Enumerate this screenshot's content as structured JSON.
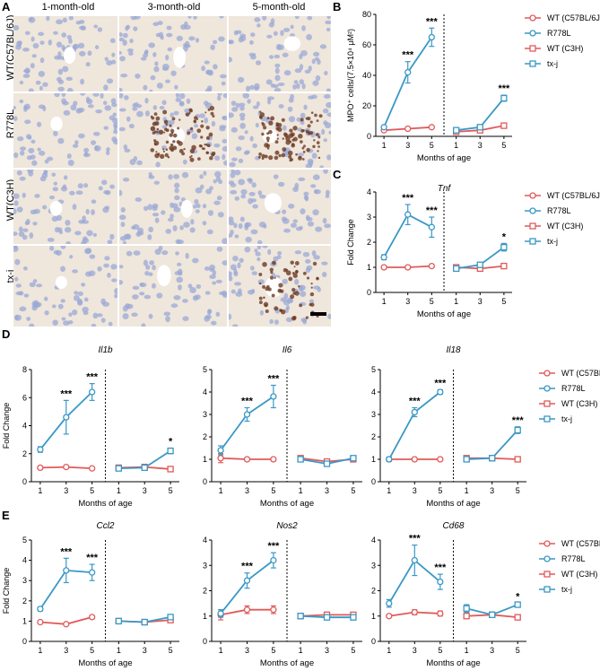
{
  "panel_letters": {
    "A": "A",
    "B": "B",
    "C": "C",
    "D": "D",
    "E": "E"
  },
  "histology": {
    "columns": [
      "1-month-old",
      "3-month-old",
      "5-month-old"
    ],
    "rows": [
      "WT(C57BL/6J)",
      "R778L",
      "WT(C3H)",
      "tx-j"
    ],
    "stain_level": [
      [
        0,
        0,
        0
      ],
      [
        0,
        3,
        3
      ],
      [
        0,
        0,
        0
      ],
      [
        0,
        0,
        2
      ]
    ],
    "colors": {
      "tissue": "#efe6dc",
      "nuclei": "#9aa8d6",
      "vessel": "#ffffff",
      "stain": "#6b3a22"
    }
  },
  "legend": [
    {
      "label": "WT (C57BL/6J)",
      "color": "#e05a5a",
      "marker": "circle"
    },
    {
      "label": "R778L",
      "color": "#3a98c6",
      "marker": "circle"
    },
    {
      "label": "WT (C3H)",
      "color": "#e05a5a",
      "marker": "square"
    },
    {
      "label": "tx-j",
      "color": "#3a98c6",
      "marker": "square"
    }
  ],
  "chart_data": [
    {
      "panel": "B",
      "type": "line",
      "title": "",
      "ylabel": "MPO⁺ cells/(7.5×10⁴ μM²)",
      "xlabel": "Months of age",
      "x": [
        1,
        3,
        5
      ],
      "ylim": [
        0,
        80
      ],
      "yticks": [
        0,
        20,
        40,
        60,
        80
      ],
      "series": [
        {
          "name": "WT (C57BL/6J)",
          "group": "left",
          "values": [
            4,
            5,
            6
          ],
          "err": [
            0.5,
            0.5,
            0.5
          ]
        },
        {
          "name": "R778L",
          "group": "left",
          "values": [
            6,
            42,
            65
          ],
          "err": [
            1,
            7,
            6
          ]
        },
        {
          "name": "WT (C3H)",
          "group": "right",
          "values": [
            3,
            4,
            7
          ],
          "err": [
            0.5,
            0.5,
            0.5
          ]
        },
        {
          "name": "tx-j",
          "group": "right",
          "values": [
            4,
            6,
            25
          ],
          "err": [
            0.5,
            0.5,
            2
          ]
        }
      ],
      "annotations": [
        {
          "group": "left",
          "x": 3,
          "text": "***"
        },
        {
          "group": "left",
          "x": 5,
          "text": "***"
        },
        {
          "group": "right",
          "x": 5,
          "text": "***"
        }
      ]
    },
    {
      "panel": "C",
      "type": "line",
      "title": "Tnf",
      "ylabel": "Fold Change",
      "xlabel": "Months of age",
      "x": [
        1,
        3,
        5
      ],
      "ylim": [
        0,
        4
      ],
      "yticks": [
        0,
        1,
        2,
        3,
        4
      ],
      "series": [
        {
          "name": "WT (C57BL/6J)",
          "group": "left",
          "values": [
            1,
            1,
            1.05
          ],
          "err": [
            0.05,
            0.05,
            0.05
          ]
        },
        {
          "name": "R778L",
          "group": "left",
          "values": [
            1.4,
            3.1,
            2.6
          ],
          "err": [
            0.1,
            0.4,
            0.4
          ]
        },
        {
          "name": "WT (C3H)",
          "group": "right",
          "values": [
            1,
            0.95,
            1.05
          ],
          "err": [
            0.05,
            0.05,
            0.05
          ]
        },
        {
          "name": "tx-j",
          "group": "right",
          "values": [
            0.95,
            1.1,
            1.8
          ],
          "err": [
            0.05,
            0.1,
            0.15
          ]
        }
      ],
      "annotations": [
        {
          "group": "left",
          "x": 3,
          "text": "***"
        },
        {
          "group": "left",
          "x": 5,
          "text": "***"
        },
        {
          "group": "right",
          "x": 5,
          "text": "*"
        }
      ]
    },
    {
      "panel": "D1",
      "type": "line",
      "title": "Il1b",
      "ylabel": "Fold Change",
      "xlabel": "Months of age",
      "x": [
        1,
        3,
        5
      ],
      "ylim": [
        0,
        8
      ],
      "yticks": [
        0,
        2,
        4,
        6,
        8
      ],
      "series": [
        {
          "name": "WT (C57BL/6J)",
          "group": "left",
          "values": [
            1,
            1.05,
            0.95
          ],
          "err": [
            0.05,
            0.1,
            0.05
          ]
        },
        {
          "name": "R778L",
          "group": "left",
          "values": [
            2.3,
            4.6,
            6.4
          ],
          "err": [
            0.2,
            1.2,
            0.6
          ]
        },
        {
          "name": "WT (C3H)",
          "group": "right",
          "values": [
            1,
            1.05,
            0.9
          ],
          "err": [
            0.05,
            0.1,
            0.1
          ]
        },
        {
          "name": "tx-j",
          "group": "right",
          "values": [
            0.95,
            1,
            2.2
          ],
          "err": [
            0.1,
            0.1,
            0.2
          ]
        }
      ],
      "annotations": [
        {
          "group": "left",
          "x": 3,
          "text": "***"
        },
        {
          "group": "left",
          "x": 5,
          "text": "***"
        },
        {
          "group": "right",
          "x": 5,
          "text": "*"
        }
      ]
    },
    {
      "panel": "D2",
      "type": "line",
      "title": "Il6",
      "ylabel": "",
      "xlabel": "Months of age",
      "x": [
        1,
        3,
        5
      ],
      "ylim": [
        0,
        5
      ],
      "yticks": [
        0,
        1,
        2,
        3,
        4,
        5
      ],
      "series": [
        {
          "name": "WT (C57BL/6J)",
          "group": "left",
          "values": [
            1.05,
            1,
            1
          ],
          "err": [
            0.2,
            0.05,
            0.05
          ]
        },
        {
          "name": "R778L",
          "group": "left",
          "values": [
            1.4,
            3,
            3.8
          ],
          "err": [
            0.2,
            0.3,
            0.5
          ]
        },
        {
          "name": "WT (C3H)",
          "group": "right",
          "values": [
            1.05,
            0.9,
            1
          ],
          "err": [
            0.05,
            0.1,
            0.1
          ]
        },
        {
          "name": "tx-j",
          "group": "right",
          "values": [
            1,
            0.8,
            1.05
          ],
          "err": [
            0.1,
            0.1,
            0.1
          ]
        }
      ],
      "annotations": [
        {
          "group": "left",
          "x": 3,
          "text": "***"
        },
        {
          "group": "left",
          "x": 5,
          "text": "***"
        }
      ]
    },
    {
      "panel": "D3",
      "type": "line",
      "title": "Il18",
      "ylabel": "",
      "xlabel": "Months of age",
      "x": [
        1,
        3,
        5
      ],
      "ylim": [
        0,
        5
      ],
      "yticks": [
        0,
        1,
        2,
        3,
        4,
        5
      ],
      "series": [
        {
          "name": "WT (C57BL/6J)",
          "group": "left",
          "values": [
            1,
            1,
            1
          ],
          "err": [
            0.05,
            0.05,
            0.05
          ]
        },
        {
          "name": "R778L",
          "group": "left",
          "values": [
            1,
            3.1,
            4
          ],
          "err": [
            0.1,
            0.2,
            0.1
          ]
        },
        {
          "name": "WT (C3H)",
          "group": "right",
          "values": [
            1.05,
            1.05,
            1
          ],
          "err": [
            0.1,
            0.1,
            0.05
          ]
        },
        {
          "name": "tx-j",
          "group": "right",
          "values": [
            1,
            1.05,
            2.3
          ],
          "err": [
            0.1,
            0.1,
            0.15
          ]
        }
      ],
      "annotations": [
        {
          "group": "left",
          "x": 3,
          "text": "***"
        },
        {
          "group": "left",
          "x": 5,
          "text": "***"
        },
        {
          "group": "right",
          "x": 5,
          "text": "***"
        }
      ]
    },
    {
      "panel": "E1",
      "type": "line",
      "title": "Ccl2",
      "ylabel": "Fold Change",
      "xlabel": "Months of age",
      "x": [
        1,
        3,
        5
      ],
      "ylim": [
        0,
        5
      ],
      "yticks": [
        0,
        1,
        2,
        3,
        4,
        5
      ],
      "series": [
        {
          "name": "WT (C57BL/6J)",
          "group": "left",
          "values": [
            0.95,
            0.85,
            1.2
          ],
          "err": [
            0.05,
            0.05,
            0.05
          ]
        },
        {
          "name": "R778L",
          "group": "left",
          "values": [
            1.6,
            3.5,
            3.4
          ],
          "err": [
            0.1,
            0.6,
            0.4
          ]
        },
        {
          "name": "WT (C3H)",
          "group": "right",
          "values": [
            1,
            0.95,
            1.05
          ],
          "err": [
            0.05,
            0.1,
            0.1
          ]
        },
        {
          "name": "tx-j",
          "group": "right",
          "values": [
            1,
            0.95,
            1.2
          ],
          "err": [
            0.05,
            0.05,
            0.1
          ]
        }
      ],
      "annotations": [
        {
          "group": "left",
          "x": 3,
          "text": "***"
        },
        {
          "group": "left",
          "x": 5,
          "text": "***"
        }
      ]
    },
    {
      "panel": "E2",
      "type": "line",
      "title": "Nos2",
      "ylabel": "",
      "xlabel": "Months of age",
      "x": [
        1,
        3,
        5
      ],
      "ylim": [
        0,
        4
      ],
      "yticks": [
        0,
        1,
        2,
        3,
        4
      ],
      "series": [
        {
          "name": "WT (C57BL/6J)",
          "group": "left",
          "values": [
            1.05,
            1.25,
            1.25
          ],
          "err": [
            0.2,
            0.15,
            0.15
          ]
        },
        {
          "name": "R778L",
          "group": "left",
          "values": [
            1.1,
            2.4,
            3.2
          ],
          "err": [
            0.15,
            0.3,
            0.3
          ]
        },
        {
          "name": "WT (C3H)",
          "group": "right",
          "values": [
            1,
            1.05,
            1.05
          ],
          "err": [
            0.1,
            0.1,
            0.05
          ]
        },
        {
          "name": "tx-j",
          "group": "right",
          "values": [
            1,
            0.95,
            0.95
          ],
          "err": [
            0.1,
            0.1,
            0.1
          ]
        }
      ],
      "annotations": [
        {
          "group": "left",
          "x": 3,
          "text": "***"
        },
        {
          "group": "left",
          "x": 5,
          "text": "***"
        }
      ]
    },
    {
      "panel": "E3",
      "type": "line",
      "title": "Cd68",
      "ylabel": "",
      "xlabel": "Months of age",
      "x": [
        1,
        3,
        5
      ],
      "ylim": [
        0,
        4
      ],
      "yticks": [
        0,
        1,
        2,
        3,
        4
      ],
      "series": [
        {
          "name": "WT (C57BL/6J)",
          "group": "left",
          "values": [
            1,
            1.15,
            1.1
          ],
          "err": [
            0.05,
            0.1,
            0.1
          ]
        },
        {
          "name": "R778L",
          "group": "left",
          "values": [
            1.5,
            3.2,
            2.35
          ],
          "err": [
            0.15,
            0.6,
            0.3
          ]
        },
        {
          "name": "WT (C3H)",
          "group": "right",
          "values": [
            1,
            1.05,
            0.95
          ],
          "err": [
            0.1,
            0.1,
            0.05
          ]
        },
        {
          "name": "tx-j",
          "group": "right",
          "values": [
            1.3,
            1.05,
            1.45
          ],
          "err": [
            0.15,
            0.1,
            0.05
          ]
        }
      ],
      "annotations": [
        {
          "group": "left",
          "x": 3,
          "text": "***"
        },
        {
          "group": "left",
          "x": 5,
          "text": "***"
        },
        {
          "group": "right",
          "x": 5,
          "text": "*"
        }
      ]
    }
  ]
}
